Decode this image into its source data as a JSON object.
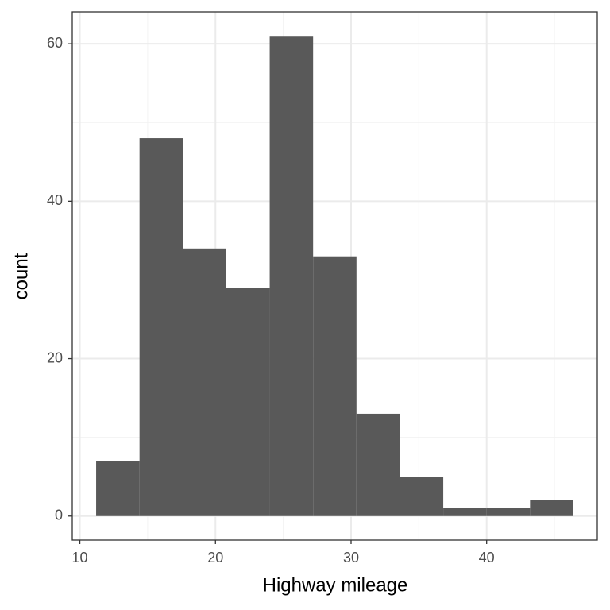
{
  "chart_data": {
    "type": "histogram",
    "x_label": "Highway mileage",
    "y_label": "count",
    "bins": [
      11.2,
      14.4,
      17.6,
      20.8,
      24.0,
      27.2,
      30.4,
      33.6,
      36.8,
      40.0,
      43.2,
      46.4
    ],
    "values": [
      7,
      48,
      34,
      29,
      61,
      33,
      13,
      5,
      1,
      1,
      2
    ],
    "color": "#595959",
    "xlim": [
      9.44,
      48.16
    ],
    "ylim": [
      -3.05,
      64.05
    ],
    "xticks": [
      10,
      20,
      30,
      40
    ],
    "yticks": [
      0,
      20,
      40,
      60
    ],
    "xminor": [
      15,
      25,
      35,
      45
    ],
    "yminor": [
      10,
      30,
      50
    ],
    "grid": true
  }
}
